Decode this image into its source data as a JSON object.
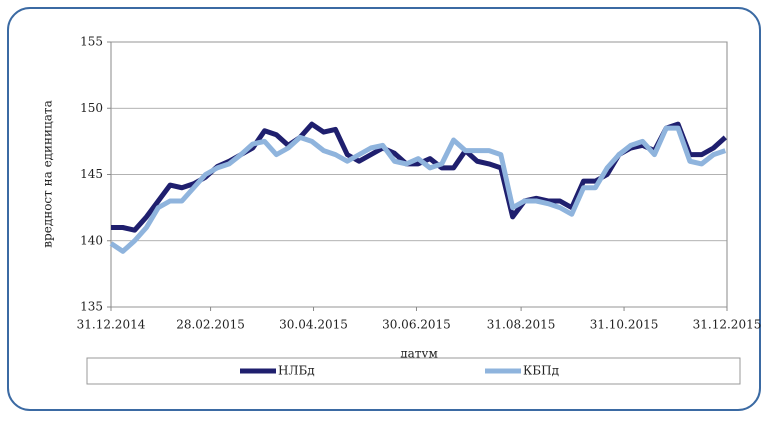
{
  "chart_data": {
    "type": "line",
    "x_label": "датум",
    "y_label": "вредност на единицата",
    "x": [
      "2014-12-31",
      "2015-01-07",
      "2015-01-14",
      "2015-01-21",
      "2015-01-28",
      "2015-02-04",
      "2015-02-11",
      "2015-02-18",
      "2015-02-25",
      "2015-03-04",
      "2015-03-11",
      "2015-03-18",
      "2015-03-25",
      "2015-04-01",
      "2015-04-08",
      "2015-04-15",
      "2015-04-22",
      "2015-04-29",
      "2015-05-06",
      "2015-05-13",
      "2015-05-20",
      "2015-05-27",
      "2015-06-03",
      "2015-06-10",
      "2015-06-17",
      "2015-06-24",
      "2015-07-01",
      "2015-07-08",
      "2015-07-15",
      "2015-07-22",
      "2015-07-29",
      "2015-08-05",
      "2015-08-12",
      "2015-08-19",
      "2015-08-26",
      "2015-09-02",
      "2015-09-09",
      "2015-09-16",
      "2015-09-23",
      "2015-09-30",
      "2015-10-07",
      "2015-10-14",
      "2015-10-21",
      "2015-10-28",
      "2015-11-04",
      "2015-11-11",
      "2015-11-18",
      "2015-11-25",
      "2015-12-02",
      "2015-12-09",
      "2015-12-16",
      "2015-12-23",
      "2015-12-30"
    ],
    "series": [
      {
        "name": "НЛБд",
        "color": "#1f1f6e",
        "values": [
          141.0,
          141.0,
          140.8,
          141.8,
          143.0,
          144.2,
          144.0,
          144.3,
          144.8,
          145.6,
          146.0,
          146.5,
          147.0,
          148.3,
          148.0,
          147.2,
          147.8,
          148.8,
          148.2,
          148.4,
          146.5,
          146.0,
          146.5,
          147.0,
          146.6,
          145.8,
          145.8,
          146.2,
          145.5,
          145.5,
          146.8,
          146.0,
          145.8,
          145.5,
          141.8,
          143.0,
          143.2,
          143.0,
          143.0,
          142.5,
          144.5,
          144.5,
          145.0,
          146.5,
          147.0,
          147.2,
          146.8,
          148.5,
          148.8,
          146.5,
          146.5,
          147.0,
          147.8
        ]
      },
      {
        "name": "КБПд",
        "color": "#8fb4dd",
        "values": [
          139.8,
          139.2,
          140.0,
          141.0,
          142.5,
          143.0,
          143.0,
          144.0,
          145.0,
          145.5,
          145.8,
          146.5,
          147.3,
          147.5,
          146.5,
          147.0,
          147.8,
          147.5,
          146.8,
          146.5,
          146.0,
          146.5,
          147.0,
          147.2,
          146.0,
          145.8,
          146.2,
          145.5,
          145.8,
          147.6,
          146.8,
          146.8,
          146.8,
          146.5,
          142.5,
          143.0,
          143.0,
          142.8,
          142.5,
          142.0,
          144.0,
          144.0,
          145.5,
          146.5,
          147.2,
          147.5,
          146.5,
          148.5,
          148.5,
          146.0,
          145.8,
          146.5,
          146.8
        ]
      }
    ],
    "xlim": [
      "2014-12-31",
      "2015-12-31"
    ],
    "xticks": [
      {
        "value": "2014-12-31",
        "label": "31.12.2014"
      },
      {
        "value": "2015-02-28",
        "label": "28.02.2015"
      },
      {
        "value": "2015-04-30",
        "label": "30.04.2015"
      },
      {
        "value": "2015-06-30",
        "label": "30.06.2015"
      },
      {
        "value": "2015-08-31",
        "label": "31.08.2015"
      },
      {
        "value": "2015-10-31",
        "label": "31.10.2015"
      },
      {
        "value": "2015-12-31",
        "label": "31.12.2015"
      }
    ],
    "ylim": [
      135,
      155
    ],
    "yticks": [
      135,
      140,
      145,
      150,
      155
    ],
    "grid": true,
    "legend": "bottom"
  }
}
